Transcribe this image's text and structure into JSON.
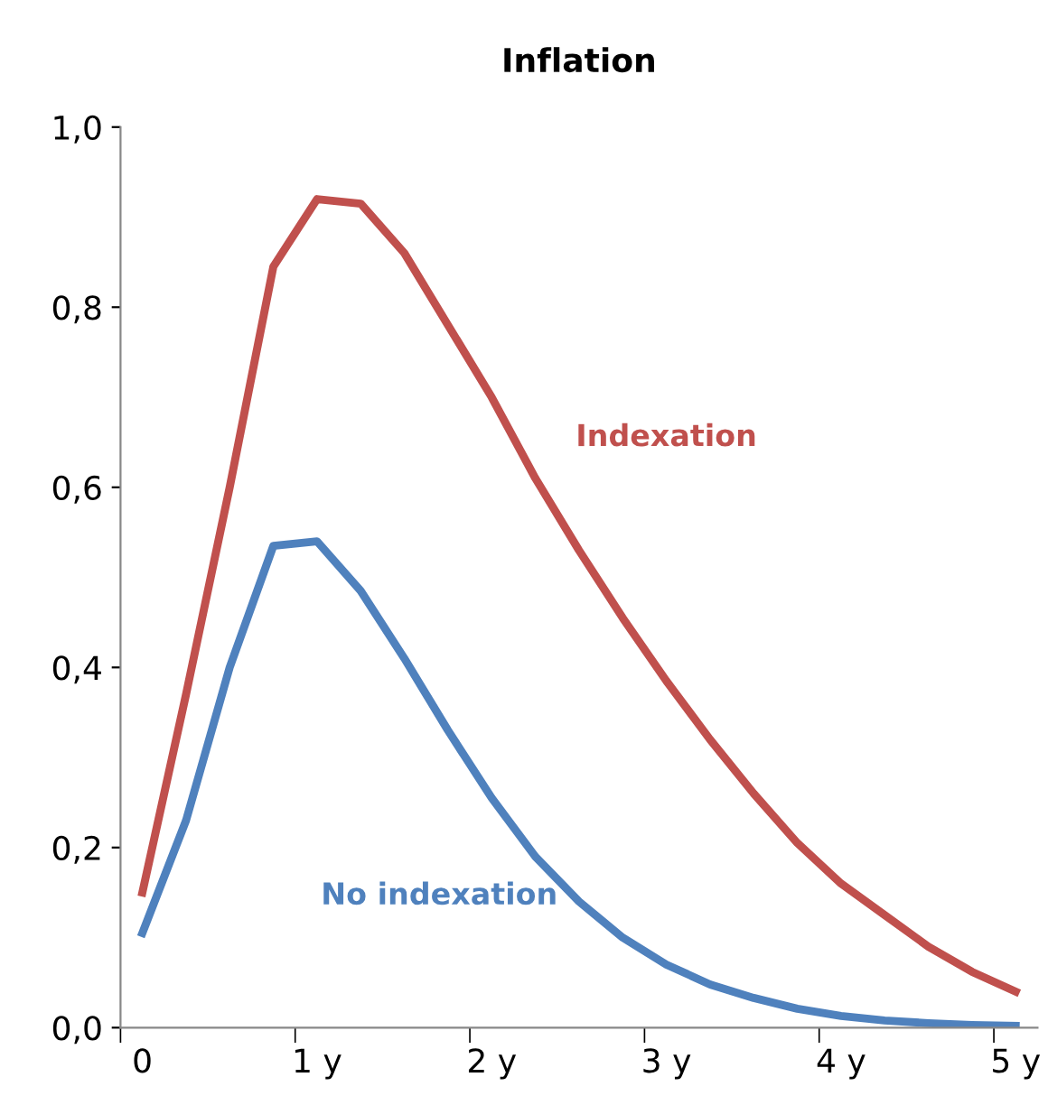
{
  "chart_data": {
    "type": "line",
    "title": "Inflation",
    "categories": [
      "0",
      null,
      null,
      null,
      "1 y",
      null,
      null,
      null,
      "2 y",
      null,
      null,
      null,
      "3 y",
      null,
      null,
      null,
      "4 y",
      null,
      null,
      null,
      "5 y"
    ],
    "series": [
      {
        "name": "Indexation",
        "color": "#c0504d",
        "values": [
          0.15,
          0.37,
          0.6,
          0.845,
          0.92,
          0.915,
          0.86,
          0.78,
          0.7,
          0.61,
          0.53,
          0.455,
          0.385,
          0.32,
          0.26,
          0.205,
          0.16,
          0.125,
          0.09,
          0.062,
          0.04
        ]
      },
      {
        "name": "No indexation",
        "color": "#4f81bd",
        "values": [
          0.105,
          0.23,
          0.4,
          0.535,
          0.54,
          0.485,
          0.41,
          0.33,
          0.255,
          0.19,
          0.14,
          0.1,
          0.07,
          0.048,
          0.033,
          0.021,
          0.013,
          0.008,
          0.005,
          0.003,
          0.002
        ]
      }
    ],
    "ylim": [
      0,
      1
    ],
    "yticks": [
      {
        "value": 0,
        "label": "0,0"
      },
      {
        "value": 0.2,
        "label": "0,2"
      },
      {
        "value": 0.4,
        "label": "0,4"
      },
      {
        "value": 0.6,
        "label": "0,6"
      },
      {
        "value": 0.8,
        "label": "0,8"
      },
      {
        "value": 1,
        "label": "1,0"
      }
    ],
    "grid": false,
    "legend": false,
    "marker": "none",
    "line_style": "solid"
  }
}
